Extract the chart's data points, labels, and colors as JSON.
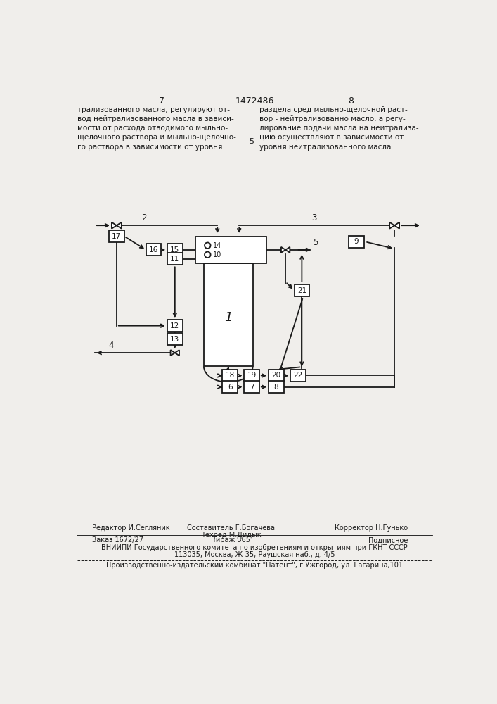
{
  "bg_color": "#f0eeeb",
  "line_color": "#1a1a1a",
  "text_color": "#1a1a1a",
  "header_text": "1472486",
  "page_left": "7",
  "page_right": "8",
  "text_left": "трализованного масла, регулируют от-\nвод нейтрализованного масла в зависи-\nмости от расхода отводимого мыльно-\nщелочного раствора и мыльно-щелочно-\nго раствора в зависимости от уровня",
  "text_right": "раздела сред мыльно-щелочной раст-\nвор - нейтрализованно масло, а регу-\nлирование подачи масла на нейтрализа-\nцию осуществляют в зависимости от\nуровня нейтрализованного масла.",
  "num_5": "5",
  "footer_col1_line1": "Редактор И.Сегляник",
  "footer_col2_line1": "Составитель Г.Богачева",
  "footer_col2_line2": "Техред М.Дидык",
  "footer_col3_line1": "Корректор Н.Гунько",
  "footer2_col1": "Заказ 1672/27",
  "footer2_col2": "Тираж 365",
  "footer2_col3": "Подписное",
  "footer3": "ВНИИПИ Государственного комитета по изобретениям и открытиям при ГКНТ СССР",
  "footer3b": "113035, Москва, Ж-35, Раушская наб., д. 4/5",
  "footer4": "Производственно-издательский комбинат \"Патент\", г.Ужгород, ул. Гагарина,101"
}
